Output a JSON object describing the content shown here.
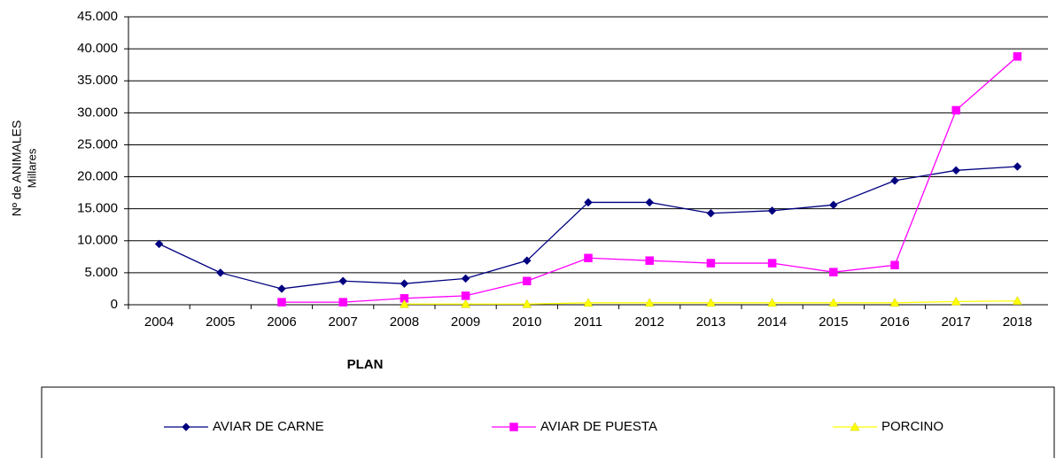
{
  "chart_data": {
    "type": "line",
    "y_label": [
      "Nº de ANIMALES",
      "Millares"
    ],
    "x_label": "PLAN",
    "categories": [
      "2004",
      "2005",
      "2006",
      "2007",
      "2008",
      "2009",
      "2010",
      "2011",
      "2012",
      "2013",
      "2014",
      "2015",
      "2016",
      "2017",
      "2018"
    ],
    "series": [
      {
        "name": "AVIAR DE CARNE",
        "color": "#000080",
        "marker": "diamond",
        "values": [
          9500,
          5000,
          2500,
          3700,
          3300,
          4100,
          6900,
          16000,
          16000,
          14300,
          14700,
          15600,
          19400,
          21000,
          21600
        ]
      },
      {
        "name": "AVIAR DE PUESTA",
        "color": "#ff00ff",
        "marker": "square",
        "values": [
          null,
          null,
          400,
          400,
          1000,
          1400,
          3700,
          7300,
          6900,
          6500,
          6500,
          5100,
          6200,
          30400,
          38800
        ]
      },
      {
        "name": "PORCINO",
        "color": "#ffff00",
        "marker": "triangle",
        "values": [
          null,
          null,
          null,
          null,
          100,
          100,
          100,
          300,
          300,
          300,
          300,
          300,
          300,
          500,
          600
        ]
      }
    ],
    "ylim": [
      0,
      45000
    ],
    "yticks": [
      0,
      {
        "value": 5000,
        "label": "5.000"
      },
      {
        "value": 10000,
        "label": "10.000"
      },
      {
        "value": 15000,
        "label": "15.000"
      },
      {
        "value": 20000,
        "label": "20.000"
      },
      {
        "value": 25000,
        "label": "25.000"
      },
      {
        "value": 30000,
        "label": "30.000"
      },
      {
        "value": 35000,
        "label": "35.000"
      },
      {
        "value": 40000,
        "label": "40.000"
      },
      {
        "value": 45000,
        "label": "45.000"
      }
    ],
    "grid": true,
    "legend": "bottom"
  }
}
